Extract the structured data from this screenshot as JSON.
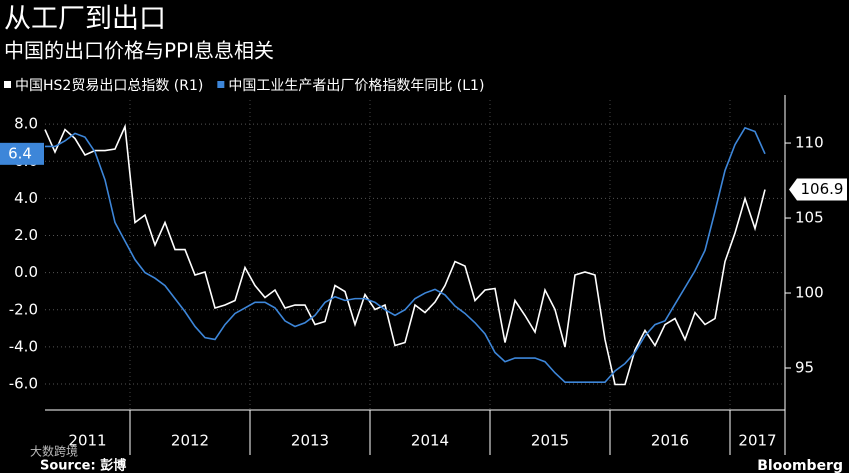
{
  "chart_data": {
    "type": "line",
    "title": "从工厂到出口",
    "subtitle": "中国的出口价格与PPI息息相关",
    "source": "Source: 彭博",
    "brand": "Bloomberg",
    "watermark": "大数跨境",
    "categories": [
      "2011",
      null,
      null,
      null,
      null,
      null,
      null,
      null,
      null,
      "2012",
      null,
      null,
      null,
      null,
      null,
      null,
      null,
      null,
      null,
      null,
      null,
      "2013",
      null,
      null,
      null,
      null,
      null,
      null,
      null,
      null,
      null,
      null,
      null,
      "2014",
      null,
      null,
      null,
      null,
      null,
      null,
      null,
      null,
      null,
      null,
      null,
      "2015",
      null,
      null,
      null,
      null,
      null,
      null,
      null,
      null,
      null,
      null,
      null,
      "2016",
      null,
      null,
      null,
      null,
      null,
      null,
      null,
      null,
      null,
      null,
      null,
      "2017",
      null,
      null,
      null
    ],
    "series": [
      {
        "name": "中国HS2贸易出口总指数 (R1)",
        "color": "#ffffff",
        "axis": "y2",
        "values": [
          110.9,
          109.4,
          110.9,
          110.3,
          109.2,
          109.5,
          109.5,
          109.6,
          111.1,
          104.7,
          105.2,
          103.2,
          104.7,
          102.9,
          102.9,
          101.2,
          101.4,
          99.0,
          99.2,
          99.5,
          101.7,
          100.5,
          99.7,
          100.2,
          99.0,
          99.2,
          99.2,
          97.9,
          98.1,
          100.5,
          100.1,
          97.9,
          99.9,
          98.9,
          99.2,
          96.5,
          96.7,
          99.2,
          98.7,
          99.4,
          100.5,
          102.1,
          101.8,
          99.5,
          100.2,
          100.3,
          96.7,
          99.5,
          98.5,
          97.4,
          100.2,
          98.9,
          96.4,
          101.2,
          101.4,
          101.2,
          96.9,
          93.9,
          93.9,
          96.2,
          97.5,
          96.5,
          97.9,
          98.3,
          96.9,
          98.7,
          97.9,
          98.3,
          102.1,
          104.0,
          106.3,
          104.3,
          106.9
        ]
      },
      {
        "name": "中国工业生产者出厂价格指数年同比 (L1)",
        "color": "#3d86d9",
        "axis": "y",
        "values": [
          6.8,
          6.8,
          7.1,
          7.5,
          7.3,
          6.5,
          5.0,
          2.7,
          1.7,
          0.7,
          0.0,
          -0.3,
          -0.7,
          -1.4,
          -2.1,
          -2.9,
          -3.5,
          -3.6,
          -2.8,
          -2.2,
          -1.9,
          -1.6,
          -1.6,
          -1.9,
          -2.6,
          -2.9,
          -2.7,
          -2.3,
          -1.6,
          -1.3,
          -1.5,
          -1.4,
          -1.4,
          -1.6,
          -2.0,
          -2.3,
          -2.0,
          -1.4,
          -1.1,
          -0.9,
          -1.2,
          -1.8,
          -2.2,
          -2.7,
          -3.3,
          -4.3,
          -4.8,
          -4.6,
          -4.6,
          -4.6,
          -4.8,
          -5.4,
          -5.9,
          -5.9,
          -5.9,
          -5.9,
          -5.9,
          -5.3,
          -4.9,
          -4.3,
          -3.4,
          -2.8,
          -2.6,
          -1.7,
          -0.8,
          0.1,
          1.2,
          3.3,
          5.5,
          6.9,
          7.8,
          7.6,
          6.4
        ]
      }
    ],
    "ylim": [
      -7.4,
      9.3
    ],
    "yticks": [
      {
        "value": 8,
        "label": "8.0"
      },
      {
        "value": 6,
        "label": "6.0"
      },
      {
        "value": 4,
        "label": "4.0"
      },
      {
        "value": 2,
        "label": "2.0"
      },
      {
        "value": 0,
        "label": "0.0"
      },
      {
        "value": -2,
        "label": "-2.0"
      },
      {
        "value": -4,
        "label": "-4.0"
      },
      {
        "value": -6,
        "label": "-6.0"
      }
    ],
    "y2lim": [
      92.2,
      112.87
    ],
    "y2ticks": [
      95,
      100,
      105,
      110
    ],
    "grid": true,
    "annotations": [
      {
        "text": "6.4",
        "value": 6.4,
        "axis": "y",
        "color": "#3d86d9"
      },
      {
        "text": "106.9",
        "value": 106.9,
        "axis": "y2",
        "color": "#ffffff"
      }
    ]
  }
}
